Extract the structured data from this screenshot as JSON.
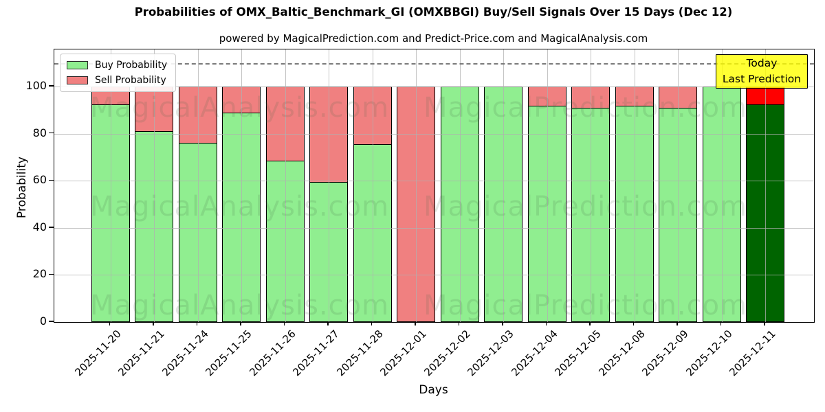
{
  "header": {
    "title": "Probabilities of OMX_Baltic_Benchmark_GI (OMXBBGI) Buy/Sell Signals Over 15 Days (Dec 12)",
    "subtitle": "powered by MagicalPrediction.com and Predict-Price.com and MagicalAnalysis.com"
  },
  "axes": {
    "ylabel": "Probability",
    "xlabel": "Days"
  },
  "legend": {
    "items": [
      {
        "label": "Buy Probability",
        "color": "#90ee90"
      },
      {
        "label": "Sell Probability",
        "color": "#f08080"
      }
    ]
  },
  "annotation": {
    "line1": "Today",
    "line2": "Last Prediction",
    "bg_color": "#ffff00",
    "bg_alpha": 0.8
  },
  "watermarks": {
    "left_text": "MagicalAnalysis.com",
    "right_text": "MagicalPrediction.com"
  },
  "chart_data": {
    "type": "bar",
    "stacked": true,
    "title": "Probabilities of OMX_Baltic_Benchmark_GI (OMXBBGI) Buy/Sell Signals Over 15 Days (Dec 12)",
    "xlabel": "Days",
    "ylabel": "Probability",
    "categories": [
      "2025-11-20",
      "2025-11-21",
      "2025-11-24",
      "2025-11-25",
      "2025-11-26",
      "2025-11-27",
      "2025-11-28",
      "2025-12-01",
      "2025-12-02",
      "2025-12-03",
      "2025-12-04",
      "2025-12-05",
      "2025-12-08",
      "2025-12-09",
      "2025-12-10",
      "2025-12-11"
    ],
    "series": [
      {
        "name": "Buy Probability",
        "color": "#90ee90",
        "values": [
          92.5,
          81,
          76,
          89,
          68.5,
          59.5,
          75.5,
          0,
          100,
          100,
          92,
          91,
          92,
          91,
          100,
          92.5
        ]
      },
      {
        "name": "Sell Probability",
        "color": "#f08080",
        "values": [
          7.5,
          19,
          24,
          11,
          31.5,
          40.5,
          24.5,
          100,
          0,
          0,
          8,
          9,
          8,
          9,
          0,
          7.5
        ]
      }
    ],
    "today_index": 15,
    "today_colors": {
      "buy": "#006400",
      "sell": "#ff0000"
    },
    "ylim": [
      0,
      115.8
    ],
    "yticks": [
      0,
      20,
      40,
      60,
      80,
      100
    ],
    "dashed_line_y": 110,
    "dashed_line_color": "#7a7a7a",
    "grid": true,
    "grid_color": "#b0b0b0",
    "bar_edge_color": "#000000",
    "legend_position": "upper left"
  }
}
